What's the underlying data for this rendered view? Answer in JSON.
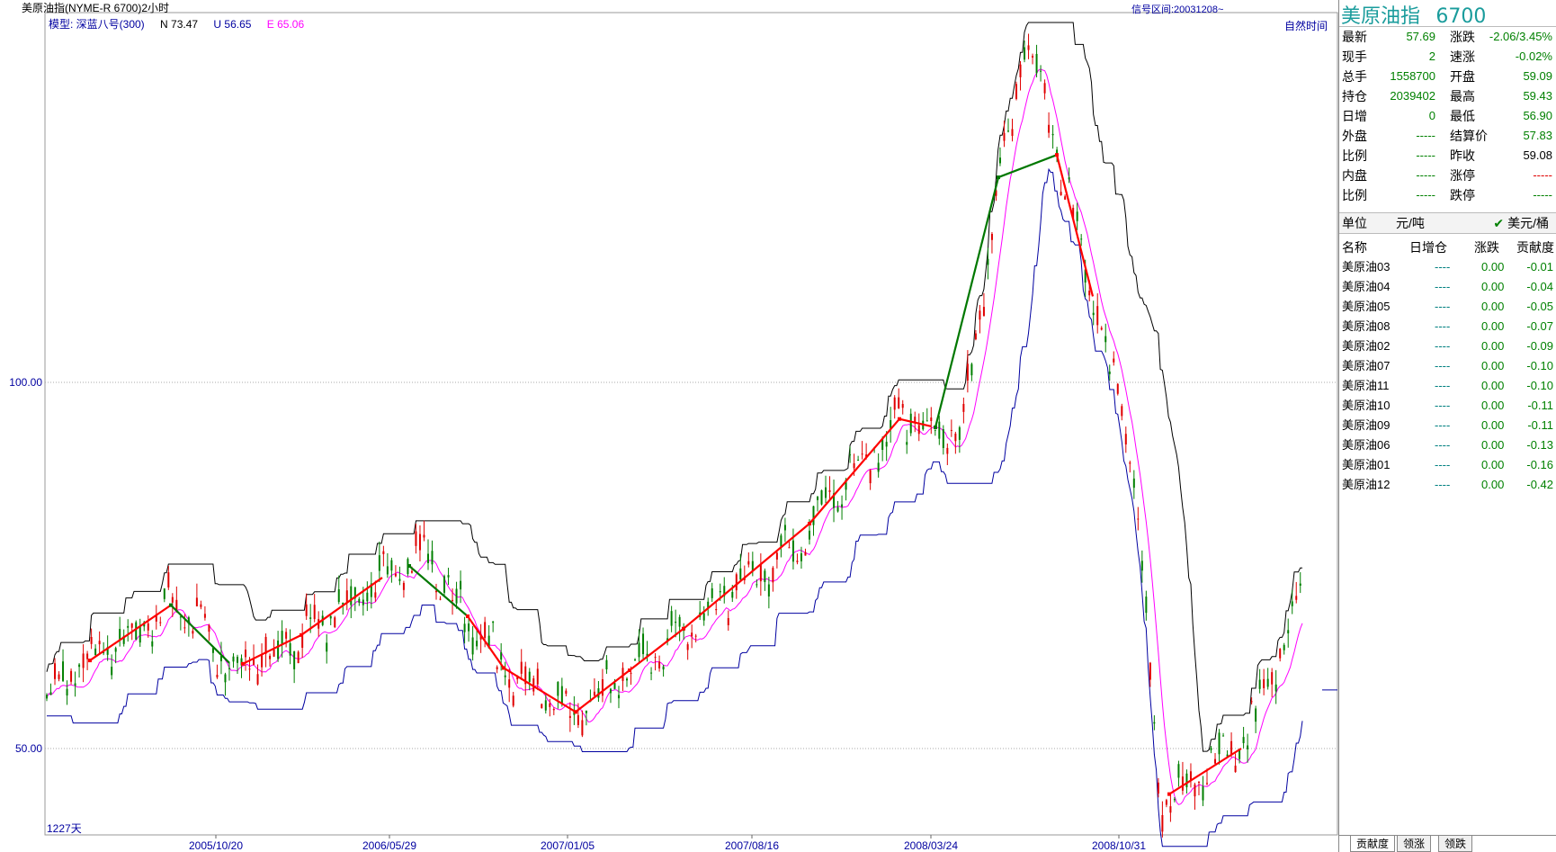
{
  "window": {
    "title": "美原油指(NYME-R 6700)2小时"
  },
  "chart_header": {
    "signal_range": "信号区间:20031208~",
    "natural_time": "自然时间",
    "model_label": "模型: 深蓝八号(300)",
    "n_label": "N 73.47",
    "u_label": "U 56.65",
    "e_label": "E 65.06",
    "days": "1227天"
  },
  "colors": {
    "candle_up": "#e00000",
    "candle_down": "#008000",
    "upper_band": "#000000",
    "lower_band": "#0000a0",
    "middle_line": "#ff00ff",
    "signal_up": "#ff0000",
    "signal_down": "#007800"
  },
  "chart_data": {
    "type": "line",
    "title": "美原油指(NYME-R 6700)2小时",
    "y_ticks": [
      "100.00",
      "50.00"
    ],
    "x_ticks": [
      "2005/10/20",
      "2006/05/29",
      "2007/01/05",
      "2007/08/16",
      "2008/03/24",
      "2008/10/31"
    ],
    "grid": "dotted horizontal at tick values",
    "series": [
      {
        "name": "N",
        "last": 73.47
      },
      {
        "name": "U",
        "last": 56.65
      },
      {
        "name": "E",
        "last": 65.06
      }
    ],
    "price_path": [
      [
        "2005/06",
        58
      ],
      [
        "2005/09",
        70
      ],
      [
        "2005/11",
        61
      ],
      [
        "2006/01",
        65
      ],
      [
        "2006/04",
        72
      ],
      [
        "2006/07",
        76
      ],
      [
        "2006/10",
        61
      ],
      [
        "2007/01",
        55
      ],
      [
        "2007/04",
        64
      ],
      [
        "2007/07",
        73
      ],
      [
        "2007/09",
        80
      ],
      [
        "2007/12",
        95
      ],
      [
        "2008/02",
        93
      ],
      [
        "2008/05",
        128
      ],
      [
        "2008/07",
        147
      ],
      [
        "2008/10",
        90
      ],
      [
        "2008/12",
        43
      ],
      [
        "2009/03",
        50
      ],
      [
        "2009/06",
        71
      ]
    ]
  },
  "quote": {
    "name": "美原油指",
    "code": "6700",
    "rows": [
      {
        "l1": "最新",
        "v1": "57.69",
        "l2": "涨跌",
        "v2": "-2.06/3.45%",
        "c2": "green"
      },
      {
        "l1": "现手",
        "v1": "2",
        "l2": "速涨",
        "v2": "-0.02%",
        "c2": "green"
      },
      {
        "l1": "总手",
        "v1": "1558700",
        "l2": "开盘",
        "v2": "59.09",
        "c2": "green"
      },
      {
        "l1": "持仓",
        "v1": "2039402",
        "l2": "最高",
        "v2": "59.43",
        "c2": "green"
      },
      {
        "l1": "日增",
        "v1": "0",
        "l2": "最低",
        "v2": "56.90",
        "c2": "green"
      },
      {
        "l1": "外盘",
        "v1": "-----",
        "l2": "结算价",
        "v2": "57.83",
        "c2": "green"
      },
      {
        "l1": "比例",
        "v1": "-----",
        "l2": "昨收",
        "v2": "59.08",
        "c2": "black"
      },
      {
        "l1": "内盘",
        "v1": "-----",
        "l2": "涨停",
        "v2": "-----",
        "c2": "red"
      },
      {
        "l1": "比例",
        "v1": "-----",
        "l2": "跌停",
        "v2": "-----",
        "c2": "green"
      }
    ]
  },
  "unit_bar": {
    "label": "单位",
    "unit1": "元/吨",
    "unit2": "美元/桶"
  },
  "contrib": {
    "headers": [
      "名称",
      "日增仓",
      "涨跌",
      "贡献度"
    ],
    "rows": [
      {
        "name": "美原油03",
        "inc": "----",
        "chg": "0.00",
        "contrib": "-0.01"
      },
      {
        "name": "美原油04",
        "inc": "----",
        "chg": "0.00",
        "contrib": "-0.04"
      },
      {
        "name": "美原油05",
        "inc": "----",
        "chg": "0.00",
        "contrib": "-0.05"
      },
      {
        "name": "美原油08",
        "inc": "----",
        "chg": "0.00",
        "contrib": "-0.07"
      },
      {
        "name": "美原油02",
        "inc": "----",
        "chg": "0.00",
        "contrib": "-0.09"
      },
      {
        "name": "美原油07",
        "inc": "----",
        "chg": "0.00",
        "contrib": "-0.10"
      },
      {
        "name": "美原油11",
        "inc": "----",
        "chg": "0.00",
        "contrib": "-0.10"
      },
      {
        "name": "美原油10",
        "inc": "----",
        "chg": "0.00",
        "contrib": "-0.11"
      },
      {
        "name": "美原油09",
        "inc": "----",
        "chg": "0.00",
        "contrib": "-0.11"
      },
      {
        "name": "美原油06",
        "inc": "----",
        "chg": "0.00",
        "contrib": "-0.13"
      },
      {
        "name": "美原油01",
        "inc": "----",
        "chg": "0.00",
        "contrib": "-0.16"
      },
      {
        "name": "美原油12",
        "inc": "----",
        "chg": "0.00",
        "contrib": "-0.42"
      }
    ]
  },
  "tabs": [
    "贡献度",
    "领涨",
    "领跌"
  ]
}
